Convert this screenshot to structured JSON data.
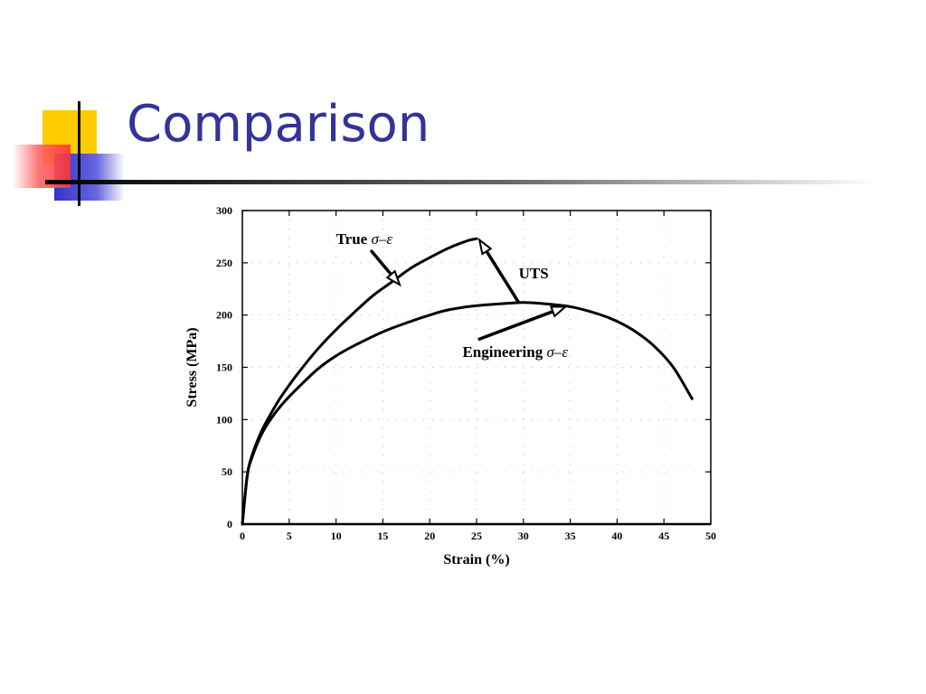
{
  "slide": {
    "title": "Comparison",
    "colors": {
      "title": "#333399",
      "yellow_square": "#ffcc00",
      "red_square": "#ff3333",
      "blue_square": "#3333cc",
      "rule": "#000000"
    }
  },
  "chart_data": {
    "type": "line",
    "title": "",
    "xlabel": "Strain (%)",
    "ylabel": "Stress (MPa)",
    "xlim": [
      0,
      50
    ],
    "ylim": [
      0,
      300
    ],
    "xticks": [
      0,
      5,
      10,
      15,
      20,
      25,
      30,
      35,
      40,
      45,
      50
    ],
    "yticks": [
      0,
      50,
      100,
      150,
      200,
      250,
      300
    ],
    "grid": "dotted",
    "legend": "none",
    "series": [
      {
        "name": "True σ–ε",
        "x": [
          0,
          0.5,
          1,
          2,
          3,
          4,
          5,
          6,
          8,
          10,
          12,
          14,
          16,
          18,
          20,
          22,
          24,
          25
        ],
        "y": [
          0,
          45,
          65,
          88,
          105,
          120,
          133,
          145,
          167,
          186,
          203,
          219,
          232,
          245,
          255,
          264,
          271,
          273
        ]
      },
      {
        "name": "Engineering σ–ε",
        "x": [
          0,
          0.5,
          1,
          2,
          3,
          4,
          5,
          6,
          8,
          10,
          12,
          15,
          18,
          20,
          22,
          25,
          28,
          30,
          32,
          35,
          38,
          40,
          42,
          44,
          46,
          48
        ],
        "y": [
          0,
          45,
          63,
          85,
          100,
          112,
          122,
          131,
          148,
          161,
          171,
          184,
          194,
          200,
          205,
          209,
          211,
          212,
          211,
          208,
          201,
          194,
          184,
          170,
          150,
          120
        ]
      }
    ],
    "annotations": [
      {
        "id": "true",
        "text": "True ",
        "symbol": "σ–ε",
        "label_at": [
          10,
          268
        ],
        "arrow_from": [
          13.8,
          261
        ],
        "arrow_to": [
          16.8,
          229
        ]
      },
      {
        "id": "uts",
        "text": "UTS",
        "symbol": "",
        "label_at": [
          29.5,
          235
        ],
        "arrow_from": [
          29.5,
          212
        ],
        "arrow_to": [
          25.3,
          272
        ]
      },
      {
        "id": "eng",
        "text": "Engineering ",
        "symbol": "σ–ε",
        "label_at": [
          23.5,
          160
        ],
        "arrow_from": [
          25.3,
          177
        ],
        "arrow_to": [
          34.5,
          208
        ]
      }
    ]
  }
}
